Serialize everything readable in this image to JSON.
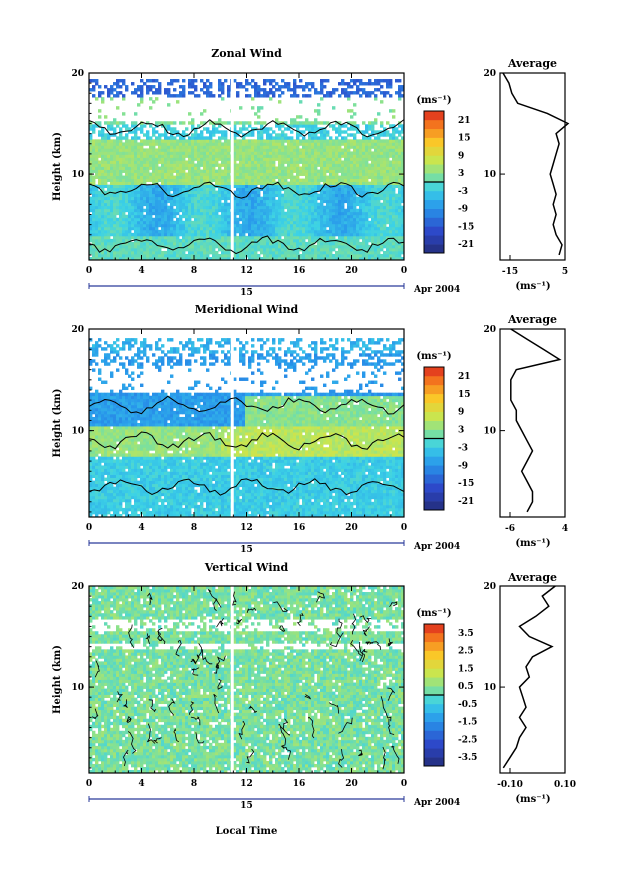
{
  "common": {
    "ylabel": "Height (km)",
    "xticks": [
      "0",
      "4",
      "8",
      "12",
      "16",
      "20",
      "0"
    ],
    "yticks": [
      "20",
      "10"
    ],
    "date_day": "15",
    "date_label": "Apr 2004",
    "unit_label": "(ms⁻¹)",
    "avg_title": "Average",
    "avg_unit": "(ms⁻¹)",
    "xlabel": "Local Time"
  },
  "chart_data": [
    {
      "type": "heatmap",
      "title": "Zonal Wind",
      "ylabel": "Height (km)",
      "xlim": [
        0,
        24
      ],
      "ylim": [
        1.5,
        20
      ],
      "colorbar_ticks": [
        "21",
        "15",
        "9",
        "3",
        "-3",
        "-9",
        "-15",
        "-21"
      ],
      "colorbar_range": [
        -24,
        24
      ],
      "contour_at": 0,
      "profile": {
        "title": "Average",
        "xticks": [
          "-15",
          "5"
        ],
        "xlim": [
          -17,
          5
        ],
        "heights": [
          2,
          3,
          4,
          5,
          6,
          7,
          8,
          9,
          10,
          11,
          12,
          13,
          14,
          15,
          16,
          17,
          18,
          19,
          20
        ],
        "values": [
          3,
          4,
          2,
          1,
          2,
          1,
          2,
          1,
          0,
          1,
          2,
          3,
          2,
          6,
          -1,
          -11,
          -13,
          -14,
          -16
        ]
      }
    },
    {
      "type": "heatmap",
      "title": "Meridional Wind",
      "ylabel": "Height (km)",
      "xlim": [
        0,
        24
      ],
      "ylim": [
        1.5,
        20
      ],
      "colorbar_ticks": [
        "21",
        "15",
        "9",
        "3",
        "-3",
        "-9",
        "-15",
        "-21"
      ],
      "colorbar_range": [
        -24,
        24
      ],
      "contour_at": 0,
      "profile": {
        "title": "Average",
        "xticks": [
          "-6",
          "4"
        ],
        "xlim": [
          -7,
          5
        ],
        "heights": [
          2,
          3,
          4,
          5,
          6,
          7,
          8,
          9,
          10,
          11,
          12,
          13,
          14,
          15,
          16,
          17,
          18,
          19,
          20
        ],
        "values": [
          -2,
          -1,
          -1,
          -2,
          -3,
          -2,
          -1,
          -2,
          -3,
          -4,
          -4,
          -5,
          -5,
          -5,
          -4,
          4,
          1,
          -2,
          -5
        ]
      }
    },
    {
      "type": "heatmap",
      "title": "Vertical Wind",
      "ylabel": "Height (km)",
      "xlabel": "Local Time",
      "xlim": [
        0,
        24
      ],
      "ylim": [
        1.5,
        20
      ],
      "colorbar_ticks": [
        "3.5",
        "2.5",
        "1.5",
        "0.5",
        "-0.5",
        "-1.5",
        "-2.5",
        "-3.5"
      ],
      "colorbar_range": [
        -4,
        4
      ],
      "contour_at": 0,
      "profile": {
        "title": "Average",
        "xticks": [
          "-0.10",
          "0.10"
        ],
        "xlim": [
          -0.1,
          0.1
        ],
        "heights": [
          2,
          3,
          4,
          5,
          6,
          7,
          8,
          9,
          10,
          11,
          12,
          13,
          14,
          15,
          16,
          17,
          18,
          19,
          20
        ],
        "values": [
          -0.09,
          -0.07,
          -0.05,
          -0.04,
          -0.02,
          -0.04,
          -0.02,
          -0.03,
          -0.04,
          -0.01,
          -0.02,
          0.0,
          0.06,
          -0.01,
          -0.04,
          0.01,
          0.05,
          0.03,
          0.07
        ]
      }
    }
  ]
}
